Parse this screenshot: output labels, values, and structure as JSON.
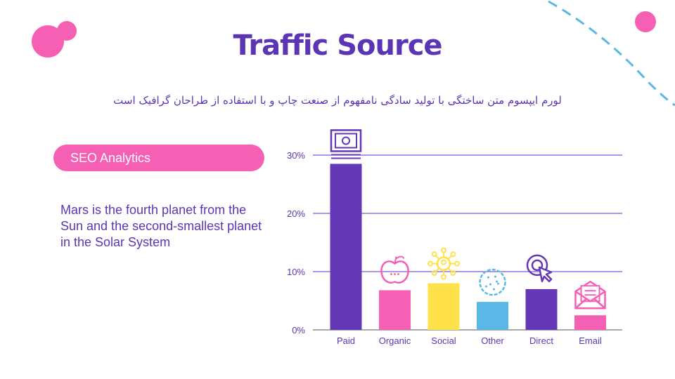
{
  "slide": {
    "title": "Traffic Source",
    "subtitle": "لورم ایپسوم متن ساختگی با تولید سادگی نامفهوم از صنعت چاپ و با استفاده از طراحان گرافیک است",
    "section_label": "SEO Analytics",
    "description": "Mars is the fourth planet from the Sun and the second-smallest planet in the Solar System"
  },
  "colors": {
    "purple": "#5b35b5",
    "pink": "#f55fb4",
    "yellow": "#ffe14a",
    "blue": "#5bb8e6",
    "grid": "#7d57d9"
  },
  "chart_data": {
    "type": "bar",
    "categories": [
      "Paid",
      "Organic",
      "Social",
      "Other",
      "Direct",
      "Email"
    ],
    "values": [
      28.5,
      6.8,
      8.0,
      4.8,
      7.0,
      2.5
    ],
    "bar_colors": [
      "#6437b6",
      "#f55fb4",
      "#ffe14a",
      "#5bb8e6",
      "#6437b6",
      "#f55fb4"
    ],
    "icons": [
      "money-icon",
      "apple-icon",
      "network-icon",
      "cookie-icon",
      "cursor-target-icon",
      "email-icon"
    ],
    "icon_colors": [
      "#6437b6",
      "#f55fb4",
      "#ffe14a",
      "#5bb8e6",
      "#6437b6",
      "#f55fb4"
    ],
    "yticks": [
      "0%",
      "10%",
      "20%",
      "30%"
    ],
    "ytick_values": [
      0,
      10,
      20,
      30
    ],
    "ylim": [
      0,
      30
    ],
    "grid": true,
    "title": "",
    "xlabel": "",
    "ylabel": ""
  }
}
